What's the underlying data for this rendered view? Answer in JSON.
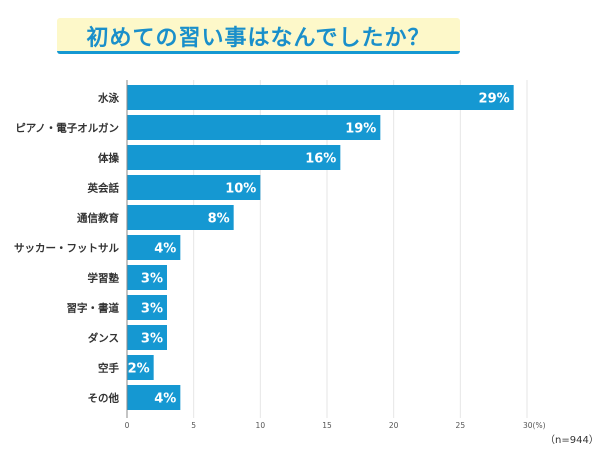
{
  "chart_data": {
    "type": "bar",
    "orientation": "horizontal",
    "title": "初めての習い事はなんでしたか？",
    "categories": [
      "水泳",
      "ピアノ・電子オルガン",
      "体操",
      "英会話",
      "通信教育",
      "サッカー・フットサル",
      "学習塾",
      "習字・書道",
      "ダンス",
      "空手",
      "その他"
    ],
    "values": [
      29,
      19,
      16,
      10,
      8,
      4,
      3,
      3,
      3,
      2,
      4
    ],
    "value_labels": [
      "29%",
      "19%",
      "16%",
      "10%",
      "8%",
      "4%",
      "3%",
      "3%",
      "3%",
      "2%",
      "4%"
    ],
    "xlim": [
      0,
      30
    ],
    "xticks": [
      "0",
      "5",
      "10",
      "15",
      "20",
      "25",
      "30(%)"
    ],
    "tick_values": [
      0,
      5,
      10,
      15,
      20,
      25,
      30
    ],
    "grid": true,
    "note": "（n=944）",
    "bar_color": "#1598d2"
  }
}
